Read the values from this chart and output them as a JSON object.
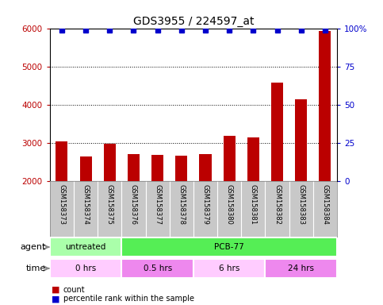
{
  "title": "GDS3955 / 224597_at",
  "samples": [
    "GSM158373",
    "GSM158374",
    "GSM158375",
    "GSM158376",
    "GSM158377",
    "GSM158378",
    "GSM158379",
    "GSM158380",
    "GSM158381",
    "GSM158382",
    "GSM158383",
    "GSM158384"
  ],
  "counts": [
    3050,
    2650,
    2980,
    2720,
    2700,
    2680,
    2720,
    3200,
    3150,
    4600,
    4150,
    5950
  ],
  "percentile_ranks": [
    99,
    99,
    99,
    99,
    99,
    99,
    99,
    99,
    99,
    99,
    99,
    99
  ],
  "bar_color": "#bb0000",
  "dot_color": "#0000cc",
  "ylim_left": [
    2000,
    6000
  ],
  "ylim_right": [
    0,
    100
  ],
  "yticks_left": [
    2000,
    3000,
    4000,
    5000,
    6000
  ],
  "yticks_right": [
    0,
    25,
    50,
    75,
    100
  ],
  "grid_lines": [
    3000,
    4000,
    5000
  ],
  "agent_groups": [
    {
      "label": "untreated",
      "start": 0,
      "end": 3,
      "color": "#aaffaa"
    },
    {
      "label": "PCB-77",
      "start": 3,
      "end": 12,
      "color": "#55ee55"
    }
  ],
  "time_groups": [
    {
      "label": "0 hrs",
      "start": 0,
      "end": 3,
      "color": "#ffccff"
    },
    {
      "label": "0.5 hrs",
      "start": 3,
      "end": 6,
      "color": "#ee88ee"
    },
    {
      "label": "6 hrs",
      "start": 6,
      "end": 9,
      "color": "#ffccff"
    },
    {
      "label": "24 hrs",
      "start": 9,
      "end": 12,
      "color": "#ee88ee"
    }
  ],
  "legend_items": [
    {
      "label": "count",
      "color": "#bb0000"
    },
    {
      "label": "percentile rank within the sample",
      "color": "#0000cc"
    }
  ],
  "bg_color": "#ffffff",
  "label_row_color": "#c8c8c8",
  "agent_label": "agent",
  "time_label": "time",
  "title_fontsize": 10,
  "tick_fontsize": 7.5,
  "label_fontsize": 7,
  "bar_width": 0.5
}
